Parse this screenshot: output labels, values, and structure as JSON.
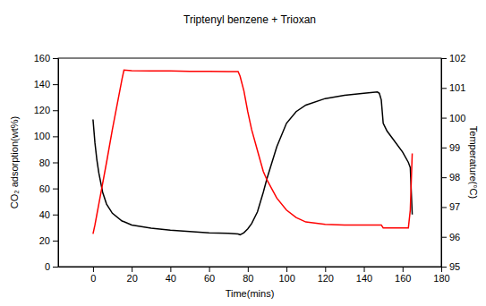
{
  "chart_data": {
    "type": "line",
    "title": "Triptenyl benzene + Trioxan",
    "x_label": "Time(mins)",
    "y_label": "CO₂ adsorption(wt%)",
    "y2_label": "Temperature(°C)",
    "xlim": [
      -18,
      180
    ],
    "xticks": [
      0,
      20,
      40,
      60,
      80,
      100,
      120,
      140,
      160,
      180
    ],
    "ylim": [
      0,
      160
    ],
    "yticks": [
      0,
      20,
      40,
      60,
      80,
      100,
      120,
      140,
      160
    ],
    "y2lim": [
      95,
      102
    ],
    "y2ticks": [
      95,
      96,
      97,
      98,
      99,
      100,
      101,
      102
    ],
    "x": [
      0,
      1,
      2,
      3,
      5,
      7,
      10,
      15,
      16,
      20,
      30,
      40,
      50,
      60,
      70,
      75,
      76,
      78,
      80,
      82,
      85,
      88,
      90,
      95,
      100,
      105,
      110,
      120,
      130,
      140,
      147,
      148,
      149,
      150,
      152,
      155,
      160,
      163,
      164,
      165
    ],
    "series": [
      {
        "color": "#000000",
        "axis": "y",
        "values": [
          113,
          95,
          82,
          72,
          57,
          48,
          41,
          35,
          34.5,
          32,
          29.5,
          28,
          27,
          26,
          25.5,
          25,
          24.5,
          26,
          29,
          33,
          42,
          57,
          68,
          92,
          110,
          119,
          124,
          129,
          131.5,
          133,
          134,
          133,
          128,
          110,
          104,
          98,
          88,
          80,
          76,
          40
        ]
      },
      {
        "color": "#ff0000",
        "axis": "y2",
        "values": [
          96.1,
          96.4,
          96.75,
          97.1,
          97.8,
          98.5,
          99.6,
          101.3,
          101.6,
          101.58,
          101.57,
          101.57,
          101.56,
          101.56,
          101.55,
          101.55,
          101.4,
          100.9,
          100.2,
          99.6,
          98.9,
          98.2,
          97.9,
          97.3,
          96.9,
          96.65,
          96.5,
          96.42,
          96.4,
          96.4,
          96.4,
          96.4,
          96.4,
          96.3,
          96.3,
          96.3,
          96.3,
          96.3,
          96.9,
          98.8
        ]
      }
    ]
  }
}
